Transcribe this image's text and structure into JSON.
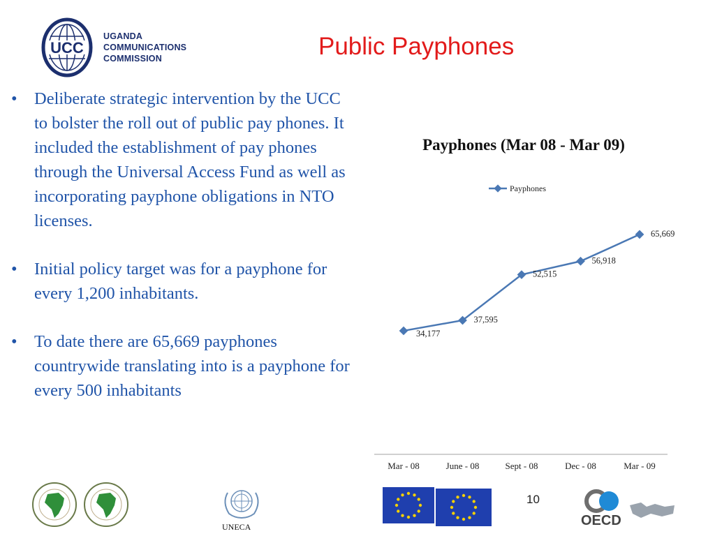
{
  "header": {
    "org_line1": "UGANDA",
    "org_line2": "COMMUNICATIONS",
    "org_line3": "COMMISSION",
    "logo_text": "UCC",
    "title": "Public Payphones"
  },
  "bullets": [
    "Deliberate strategic intervention by the UCC to bolster the roll out of public pay phones. It included the establishment of  pay phones through the Universal Access Fund as well as incorporating payphone obligations in NTO licenses.",
    "Initial policy target was for a payphone for every 1,200 inhabitants.",
    "To date there are 65,669 payphones countrywide translating into  is a payphone for every 500 inhabitants"
  ],
  "chart_data": {
    "type": "line",
    "title": "Payphones (Mar 08 - Mar 09)",
    "categories": [
      "Mar - 08",
      "June - 08",
      "Sept - 08",
      "Dec - 08",
      "Mar - 09"
    ],
    "series": [
      {
        "name": "Payphones",
        "values": [
          34177,
          37595,
          52515,
          56918,
          65669
        ],
        "labels": [
          "34,177",
          "37,595",
          "52,515",
          "56,918",
          "65,669"
        ]
      }
    ],
    "ylim": [
      15000,
      75000
    ],
    "legend": "top",
    "grid": false,
    "color": "#4a78b4"
  },
  "footer": {
    "page_number": "10",
    "uneca_label": "UNECA"
  },
  "icons": {
    "ucc": "globe-logo-icon",
    "afdb": "africa-map-seal-icon",
    "un": "un-emblem-icon",
    "eu": "eu-flag-icon",
    "oecd": "oecd-logo-icon"
  }
}
